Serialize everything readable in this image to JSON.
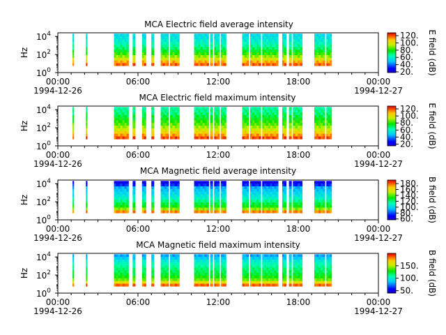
{
  "chart_data": [
    {
      "type": "heatmap",
      "title": "MCA  Electric field average intensity",
      "ylabel": "Hz",
      "colorbar_label": "E field (dB)",
      "colorbar_ticks": [
        "20.",
        "40.",
        "60.",
        "80.",
        "100.",
        "120."
      ],
      "colorbar_range": [
        18,
        128
      ],
      "y_ticks": [
        {
          "base": "10",
          "exp": "0"
        },
        {
          "base": "10",
          "exp": "2"
        },
        {
          "base": "10",
          "exp": "4"
        }
      ],
      "x_ticks": [
        "00:00",
        "06:00",
        "12:00",
        "18:00",
        "00:00"
      ],
      "x_dates": [
        "1994-12-26",
        "1994-12-27"
      ],
      "xlim_hours": [
        0,
        24
      ],
      "ylim_log10_hz": [
        0,
        4.4
      ],
      "data_intervals_hours": [
        [
          1.1,
          1.2
        ],
        [
          2.1,
          2.2
        ],
        [
          4.2,
          5.3
        ],
        [
          5.6,
          5.8
        ],
        [
          6.3,
          6.6
        ],
        [
          7.0,
          7.2
        ],
        [
          7.7,
          8.3
        ],
        [
          8.4,
          9.1
        ],
        [
          10.2,
          11.3
        ],
        [
          11.4,
          11.6
        ],
        [
          11.7,
          12.1
        ],
        [
          12.2,
          12.6
        ],
        [
          13.8,
          14.3
        ],
        [
          14.4,
          15.2
        ],
        [
          15.3,
          16.5
        ],
        [
          16.8,
          17.1
        ],
        [
          17.3,
          17.5
        ],
        [
          17.6,
          18.3
        ],
        [
          19.2,
          20.0
        ],
        [
          20.1,
          20.5
        ]
      ],
      "spectrum_db": [
        118,
        110,
        98,
        90,
        82,
        76,
        70,
        66,
        62,
        58,
        56,
        54
      ]
    },
    {
      "type": "heatmap",
      "title": "MCA  Electric field maximum intensity",
      "ylabel": "Hz",
      "colorbar_label": "E field (dB)",
      "colorbar_ticks": [
        "20.",
        "40.",
        "60.",
        "80.",
        "100.",
        "120."
      ],
      "colorbar_range": [
        15,
        128
      ],
      "y_ticks": [
        {
          "base": "10",
          "exp": "0"
        },
        {
          "base": "10",
          "exp": "2"
        },
        {
          "base": "10",
          "exp": "4"
        }
      ],
      "x_ticks": [
        "00:00",
        "06:00",
        "12:00",
        "18:00",
        "00:00"
      ],
      "x_dates": [
        "1994-12-26",
        "1994-12-27"
      ],
      "xlim_hours": [
        0,
        24
      ],
      "ylim_log10_hz": [
        0,
        4.4
      ],
      "data_intervals_hours": [
        [
          1.1,
          1.2
        ],
        [
          2.1,
          2.2
        ],
        [
          4.2,
          5.3
        ],
        [
          5.6,
          5.8
        ],
        [
          6.3,
          6.6
        ],
        [
          7.0,
          7.2
        ],
        [
          7.7,
          8.3
        ],
        [
          8.4,
          9.1
        ],
        [
          10.2,
          11.3
        ],
        [
          11.4,
          11.6
        ],
        [
          11.7,
          12.1
        ],
        [
          12.2,
          12.6
        ],
        [
          13.8,
          14.3
        ],
        [
          14.4,
          15.2
        ],
        [
          15.3,
          16.5
        ],
        [
          16.8,
          17.1
        ],
        [
          17.3,
          17.5
        ],
        [
          17.6,
          18.3
        ],
        [
          19.2,
          20.0
        ],
        [
          20.1,
          20.5
        ]
      ],
      "spectrum_db": [
        120,
        112,
        104,
        96,
        90,
        84,
        80,
        76,
        72,
        68,
        66,
        64
      ]
    },
    {
      "type": "heatmap",
      "title": "MCA  Magnetic field average intensity",
      "ylabel": "Hz",
      "colorbar_label": "B field (dB)",
      "colorbar_ticks": [
        "60.",
        "80.",
        "100.",
        "120.",
        "140.",
        "160.",
        "180."
      ],
      "colorbar_range": [
        57,
        192
      ],
      "y_ticks": [
        {
          "base": "10",
          "exp": "0"
        },
        {
          "base": "10",
          "exp": "2"
        },
        {
          "base": "10",
          "exp": "4"
        }
      ],
      "x_ticks": [
        "00:00",
        "06:00",
        "12:00",
        "18:00",
        "00:00"
      ],
      "x_dates": [
        "1994-12-26",
        "1994-12-27"
      ],
      "xlim_hours": [
        0,
        24
      ],
      "ylim_log10_hz": [
        0,
        4.4
      ],
      "data_intervals_hours": [
        [
          1.1,
          1.2
        ],
        [
          2.1,
          2.2
        ],
        [
          4.2,
          5.3
        ],
        [
          5.6,
          5.8
        ],
        [
          6.3,
          6.6
        ],
        [
          7.0,
          7.2
        ],
        [
          7.7,
          8.3
        ],
        [
          8.4,
          9.1
        ],
        [
          10.2,
          11.3
        ],
        [
          11.4,
          11.6
        ],
        [
          11.7,
          12.1
        ],
        [
          12.2,
          12.6
        ],
        [
          13.8,
          14.3
        ],
        [
          14.4,
          15.2
        ],
        [
          15.3,
          16.5
        ],
        [
          16.8,
          17.1
        ],
        [
          17.3,
          17.5
        ],
        [
          17.6,
          18.3
        ],
        [
          19.2,
          20.0
        ],
        [
          20.1,
          20.5
        ]
      ],
      "spectrum_db": [
        175,
        145,
        132,
        125,
        118,
        110,
        104,
        100,
        96,
        92,
        75,
        65
      ]
    },
    {
      "type": "heatmap",
      "title": "MCA  Magnetic field maximum intensity",
      "ylabel": "Hz",
      "colorbar_label": "B field (dB)",
      "colorbar_ticks": [
        "50.",
        "100.",
        "150."
      ],
      "colorbar_range": [
        40,
        200
      ],
      "y_ticks": [
        {
          "base": "10",
          "exp": "0"
        },
        {
          "base": "10",
          "exp": "2"
        },
        {
          "base": "10",
          "exp": "4"
        }
      ],
      "x_ticks": [
        "00:00",
        "06:00",
        "12:00",
        "18:00",
        "00:00"
      ],
      "x_dates": [
        "1994-12-26",
        "1994-12-27"
      ],
      "xlim_hours": [
        0,
        24
      ],
      "ylim_log10_hz": [
        0,
        4.4
      ],
      "data_intervals_hours": [
        [
          1.1,
          1.2
        ],
        [
          2.1,
          2.2
        ],
        [
          4.2,
          5.3
        ],
        [
          5.6,
          5.8
        ],
        [
          6.3,
          6.6
        ],
        [
          7.0,
          7.2
        ],
        [
          7.7,
          8.3
        ],
        [
          8.4,
          9.1
        ],
        [
          10.2,
          11.3
        ],
        [
          11.4,
          11.6
        ],
        [
          11.7,
          12.1
        ],
        [
          12.2,
          12.6
        ],
        [
          13.8,
          14.3
        ],
        [
          14.4,
          15.2
        ],
        [
          15.3,
          16.5
        ],
        [
          16.8,
          17.1
        ],
        [
          17.3,
          17.5
        ],
        [
          17.6,
          18.3
        ],
        [
          19.2,
          20.0
        ],
        [
          20.1,
          20.5
        ]
      ],
      "spectrum_db": [
        185,
        160,
        140,
        130,
        122,
        118,
        115,
        110,
        105,
        98,
        88,
        80
      ]
    }
  ]
}
